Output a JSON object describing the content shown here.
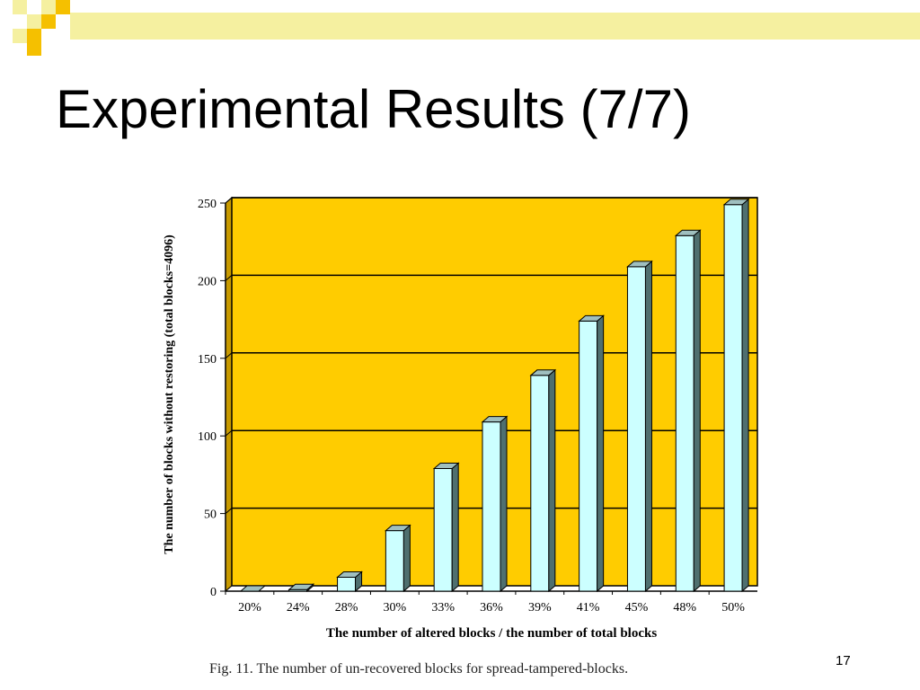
{
  "slide": {
    "title": "Experimental Results (7/7)",
    "caption": "Fig. 11. The number of un-recovered blocks for spread-tampered-blocks.",
    "page_number": "17"
  },
  "colors": {
    "accent_yellow": "#f5f0a0",
    "accent_orange": "#f5c000",
    "plot_background": "#ffcc00",
    "bar_front": "#ccffff",
    "bar_side": "#4f6f6f",
    "bar_top": "#9fbfbf"
  },
  "chart_data": {
    "type": "bar",
    "categories": [
      "20%",
      "24%",
      "28%",
      "30%",
      "33%",
      "36%",
      "39%",
      "41%",
      "45%",
      "48%",
      "50%"
    ],
    "values": [
      0,
      1,
      9,
      39,
      79,
      109,
      139,
      174,
      209,
      229,
      249
    ],
    "xlabel": "The number of altered blocks / the number of total blocks",
    "ylabel": "The number of blocks without restoring (total blocks=4096)",
    "ylim": [
      0,
      250
    ],
    "yticks": [
      0,
      50,
      100,
      150,
      200,
      250
    ],
    "grid": true,
    "legend": "none"
  }
}
